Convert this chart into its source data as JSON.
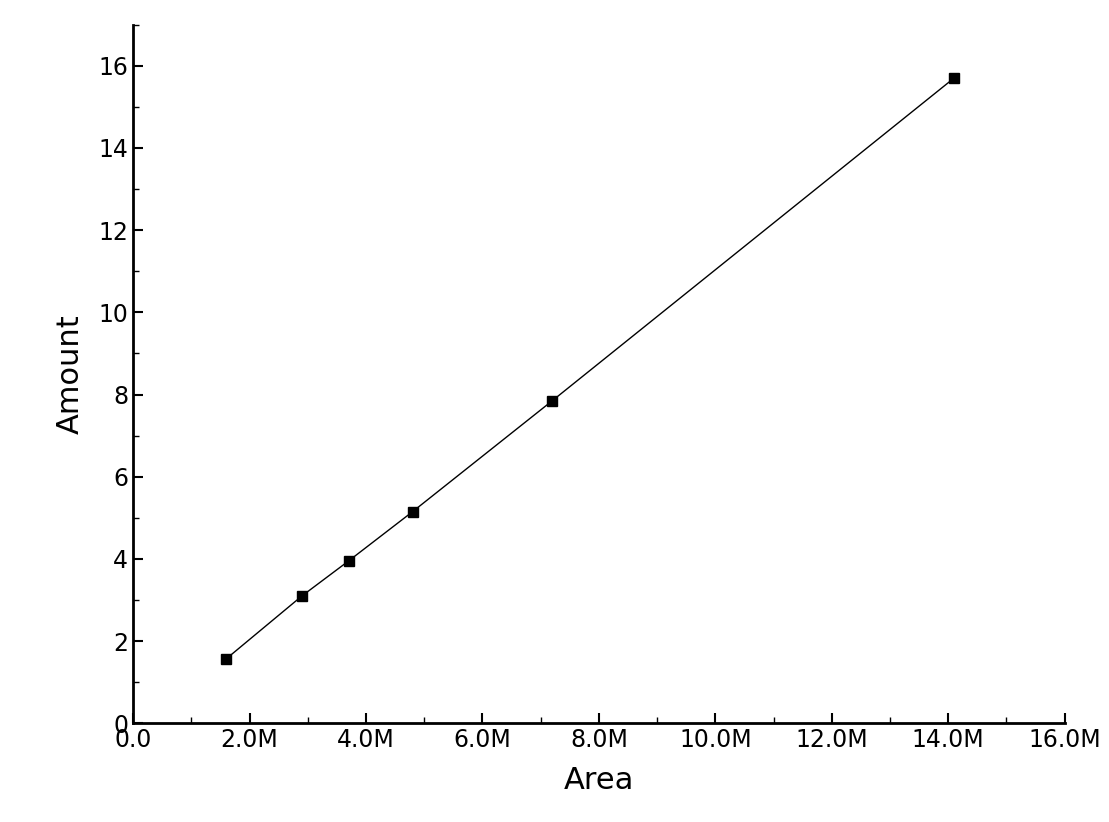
{
  "x": [
    1600000,
    2900000,
    3700000,
    4800000,
    7200000,
    14100000
  ],
  "y": [
    1.57,
    3.1,
    3.95,
    5.15,
    7.85,
    15.7
  ],
  "xlabel": "Area",
  "ylabel": "Amount",
  "xlim": [
    0,
    16000000
  ],
  "ylim": [
    0,
    17
  ],
  "xticks": [
    0,
    2000000,
    4000000,
    6000000,
    8000000,
    10000000,
    12000000,
    14000000,
    16000000
  ],
  "yticks": [
    0,
    2,
    4,
    6,
    8,
    10,
    12,
    14,
    16
  ],
  "line_color": "#000000",
  "marker_color": "#000000",
  "background_color": "#ffffff",
  "marker_size": 7,
  "line_width": 1.0
}
